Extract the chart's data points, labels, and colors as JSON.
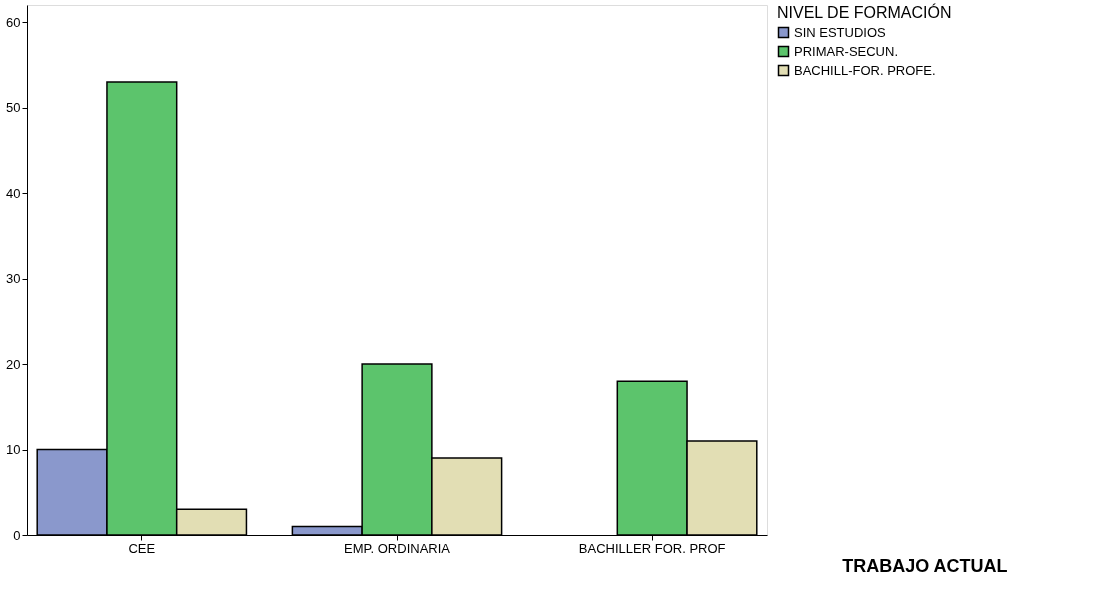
{
  "chart_data": {
    "type": "bar",
    "xlabel": "TRABAJO ACTUAL",
    "legend_title": "NIVEL DE FORMACIÓN",
    "categories": [
      "CEE",
      "EMP. ORDINARIA",
      "BACHILLER FOR. PROF"
    ],
    "series": [
      {
        "name": "SIN ESTUDIOS",
        "color": "#8a98cc",
        "values": [
          10,
          1,
          null
        ]
      },
      {
        "name": "PRIMAR-SECUN.",
        "color": "#5cc46c",
        "values": [
          53,
          20,
          18
        ]
      },
      {
        "name": "BACHILL-FOR. PROFE.",
        "color": "#e2deb4",
        "values": [
          3,
          9,
          11
        ]
      }
    ],
    "ylim": [
      0,
      62
    ],
    "yticks": [
      0,
      10,
      20,
      30,
      40,
      50,
      60
    ],
    "grid": false,
    "legend": "top right"
  }
}
